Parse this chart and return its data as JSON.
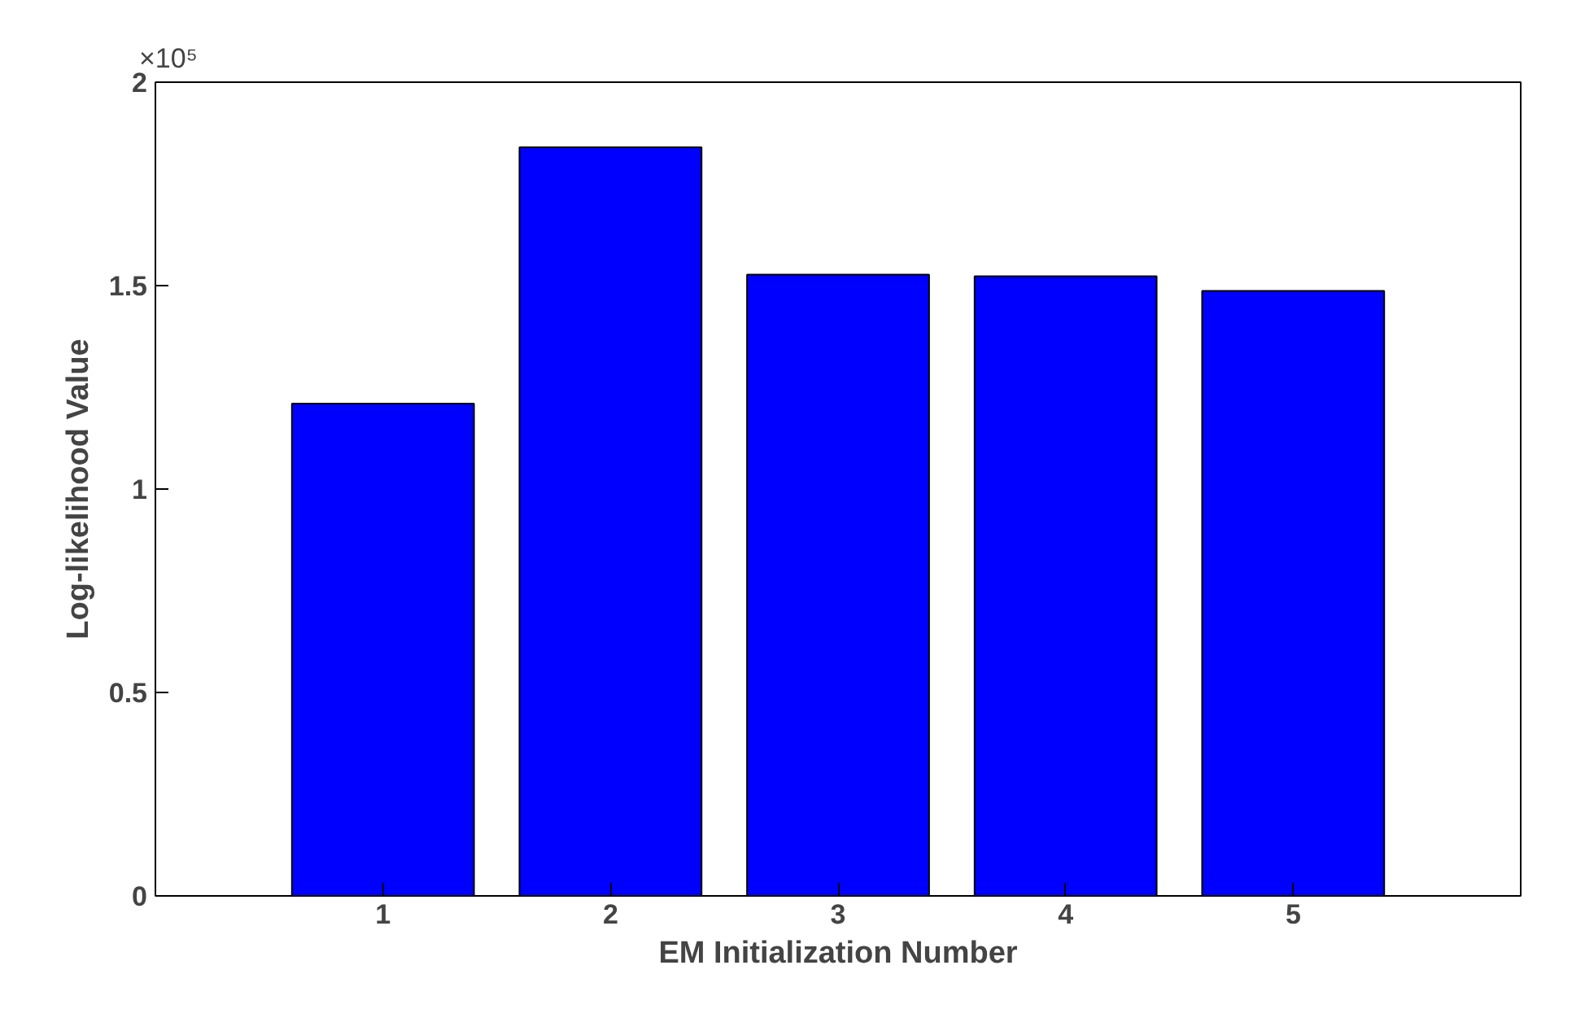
{
  "chart_data": {
    "type": "bar",
    "xlabel": "EM Initialization Number",
    "ylabel": "Log-likelihood Value",
    "x": [
      1,
      2,
      3,
      4,
      5
    ],
    "values": [
      1.21,
      1.84,
      1.527,
      1.523,
      1.487
    ],
    "color": "#0000ff",
    "xlim": [
      0,
      6
    ],
    "xticks": [
      1,
      2,
      3,
      4,
      5
    ],
    "ylim": [
      0,
      2
    ],
    "yticks": [
      0,
      0.5,
      1,
      1.5,
      2
    ],
    "annotations": [
      "×10⁵"
    ],
    "grid": false
  }
}
